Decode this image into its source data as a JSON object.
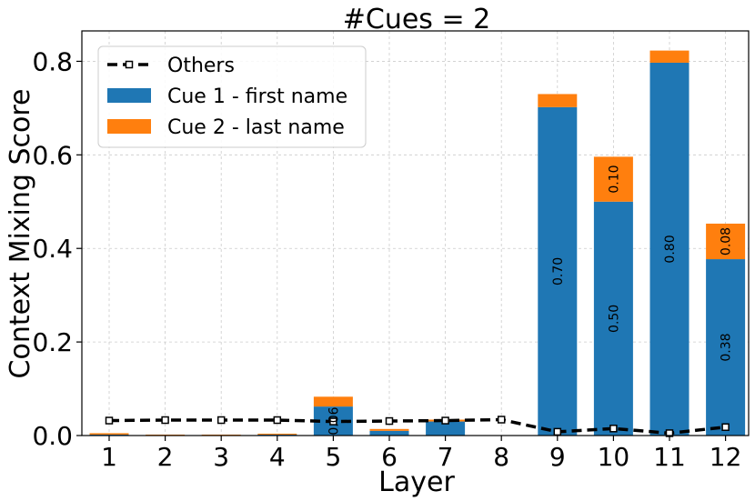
{
  "chart_data": {
    "type": "bar",
    "title": "#Cues = 2",
    "xlabel": "Layer",
    "ylabel": "Context Mixing Score",
    "categories": [
      "1",
      "2",
      "3",
      "4",
      "5",
      "6",
      "7",
      "8",
      "9",
      "10",
      "11",
      "12"
    ],
    "ylim": [
      0,
      0.865
    ],
    "yticks": [
      "0.0",
      "0.2",
      "0.4",
      "0.6",
      "0.8"
    ],
    "grid": true,
    "legend_position": "top-left",
    "series": [
      {
        "name": "Cue 1 - first name",
        "color": "#1f77b4",
        "kind": "stacked-bar",
        "values": [
          0.002,
          0.001,
          0.001,
          0.002,
          0.062,
          0.01,
          0.03,
          0.0,
          0.702,
          0.5,
          0.797,
          0.377
        ]
      },
      {
        "name": "Cue 2 - last name",
        "color": "#ff7f0e",
        "kind": "stacked-bar",
        "values": [
          0.003,
          0.001,
          0.001,
          0.002,
          0.021,
          0.004,
          0.004,
          0.0,
          0.028,
          0.096,
          0.026,
          0.076
        ]
      },
      {
        "name": "Others",
        "color": "#000000",
        "kind": "line",
        "style": "dashed",
        "marker": "square",
        "values": [
          0.032,
          0.033,
          0.033,
          0.033,
          0.03,
          0.031,
          0.032,
          0.034,
          0.008,
          0.015,
          0.005,
          0.018
        ]
      }
    ],
    "annotations": [
      {
        "layer": "5",
        "series": "Cue 1 - first name",
        "text": "0.06"
      },
      {
        "layer": "9",
        "series": "Cue 1 - first name",
        "text": "0.70"
      },
      {
        "layer": "10",
        "series": "Cue 1 - first name",
        "text": "0.50"
      },
      {
        "layer": "10",
        "series": "Cue 2 - last name",
        "text": "0.10"
      },
      {
        "layer": "11",
        "series": "Cue 1 - first name",
        "text": "0.80"
      },
      {
        "layer": "12",
        "series": "Cue 1 - first name",
        "text": "0.38"
      },
      {
        "layer": "12",
        "series": "Cue 2 - last name",
        "text": "0.08"
      }
    ]
  }
}
